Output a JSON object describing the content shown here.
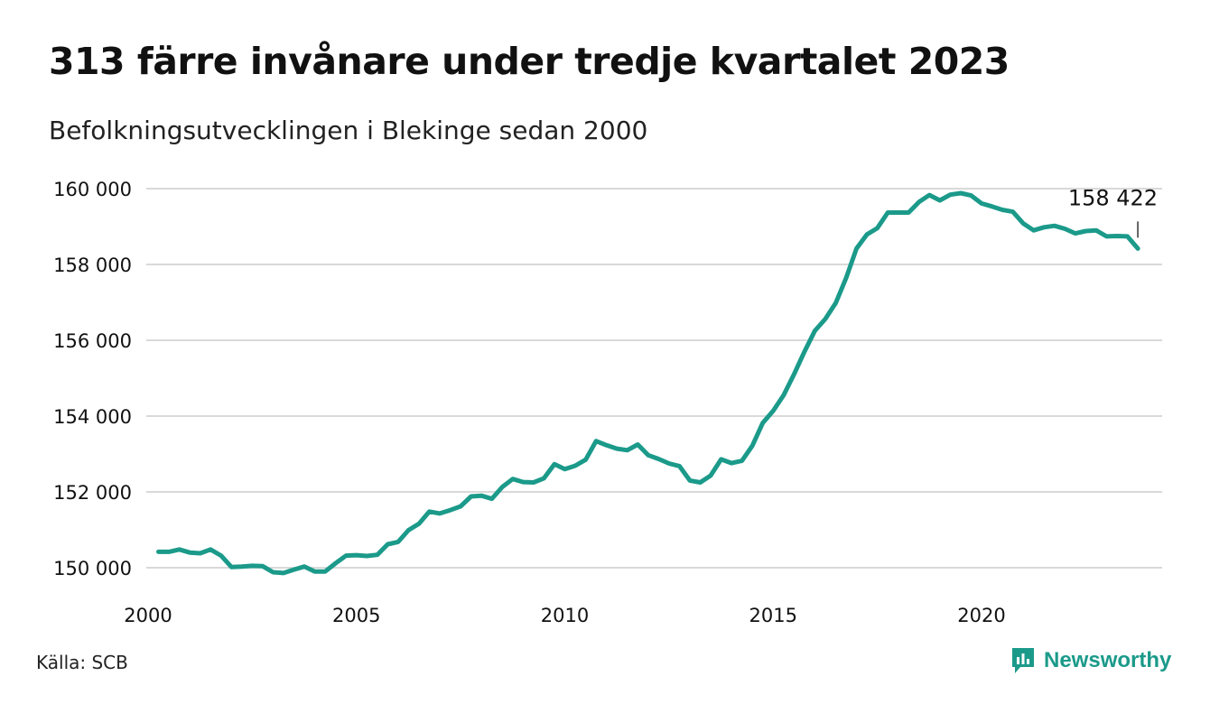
{
  "title": "313 färre invånare under tredje kvartalet 2023",
  "subtitle": "Befolkningsutvecklingen i Blekinge sedan 2000",
  "source": "Källa: SCB",
  "brand": {
    "name": "Newsworthy",
    "color": "#1b9a8a",
    "icon": "bar-chart-chat-icon"
  },
  "chart_data": {
    "type": "line",
    "title": "313 färre invånare under tredje kvartalet 2023",
    "xlabel": "",
    "ylabel": "",
    "xlim": [
      2000,
      2024.5
    ],
    "ylim": [
      149500,
      160500
    ],
    "grid": true,
    "line_color": "#1b9a8a",
    "x_ticks": [
      2000,
      2005,
      2010,
      2015,
      2020
    ],
    "x_tick_labels": [
      "2000",
      "2005",
      "2010",
      "2015",
      "2020"
    ],
    "y_ticks": [
      150000,
      152000,
      154000,
      156000,
      158000,
      160000
    ],
    "y_tick_labels": [
      "150 000",
      "152 000",
      "154 000",
      "156 000",
      "158 000",
      "160 000"
    ],
    "annotation": {
      "text": "158 422"
    },
    "series": [
      {
        "x": [
          2000.25,
          2000.5,
          2000.75,
          2001,
          2001.25,
          2001.5,
          2001.75,
          2002,
          2002.25,
          2002.5,
          2002.75,
          2003,
          2003.25,
          2003.5,
          2003.75,
          2004,
          2004.25,
          2004.5,
          2004.75,
          2005,
          2005.25,
          2005.5,
          2005.75,
          2006,
          2006.25,
          2006.5,
          2006.75,
          2007,
          2007.25,
          2007.5,
          2007.75,
          2008,
          2008.25,
          2008.5,
          2008.75,
          2009,
          2009.25,
          2009.5,
          2009.75,
          2010,
          2010.25,
          2010.5,
          2010.75,
          2011,
          2011.25,
          2011.5,
          2011.75,
          2012,
          2012.25,
          2012.5,
          2012.75,
          2013,
          2013.25,
          2013.5,
          2013.75,
          2014,
          2014.25,
          2014.5,
          2014.75,
          2015,
          2015.25,
          2015.5,
          2015.75,
          2016,
          2016.25,
          2016.5,
          2016.75,
          2017,
          2017.25,
          2017.5,
          2017.75,
          2018,
          2018.25,
          2018.5,
          2018.75,
          2019,
          2019.25,
          2019.5,
          2019.75,
          2020,
          2020.25,
          2020.5,
          2020.75,
          2021,
          2021.25,
          2021.5,
          2021.75,
          2022,
          2022.25,
          2022.5,
          2022.75,
          2023,
          2023.25,
          2023.5,
          2023.75
        ],
        "y": [
          150420,
          150420,
          150480,
          150400,
          150380,
          150480,
          150320,
          150020,
          150030,
          150050,
          150040,
          149880,
          149860,
          149950,
          150030,
          149900,
          149900,
          150120,
          150320,
          150330,
          150310,
          150340,
          150620,
          150680,
          150990,
          151160,
          151480,
          151430,
          151520,
          151620,
          151880,
          151900,
          151820,
          152130,
          152340,
          152260,
          152250,
          152360,
          152730,
          152600,
          152690,
          152850,
          153340,
          153230,
          153140,
          153100,
          153250,
          152970,
          152870,
          152750,
          152680,
          152300,
          152250,
          152430,
          152860,
          152760,
          152820,
          153220,
          153820,
          154140,
          154550,
          155100,
          155700,
          156250,
          156560,
          156980,
          157640,
          158420,
          158790,
          158960,
          159370,
          159370,
          159370,
          159650,
          159830,
          159690,
          159840,
          159880,
          159820,
          159610,
          159530,
          159440,
          159390,
          159080,
          158900,
          158980,
          159020,
          158940,
          158820,
          158880,
          158900,
          158740,
          158750,
          158740,
          158420
        ]
      }
    ]
  }
}
